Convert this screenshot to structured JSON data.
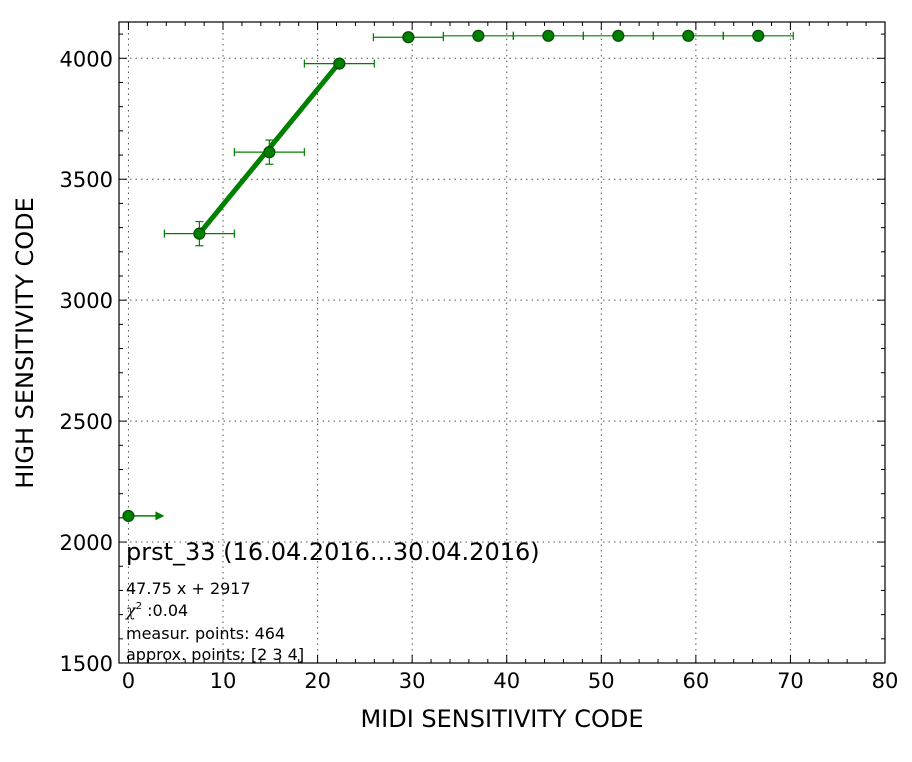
{
  "chart_data": {
    "type": "scatter",
    "xlabel": "MIDI SENSITIVITY CODE",
    "ylabel": "HIGH SENSITIVITY CODE",
    "xlim": [
      -1,
      80
    ],
    "ylim": [
      1500,
      4150
    ],
    "x_ticks": [
      "0",
      "10",
      "20",
      "30",
      "40",
      "50",
      "60",
      "70",
      "80"
    ],
    "y_ticks": [
      "1500",
      "2000",
      "2500",
      "3000",
      "3500",
      "4000"
    ],
    "grid": true,
    "colors": {
      "series": "#008000",
      "marker_face": "#008000",
      "marker_edge": "#004d00"
    },
    "points": [
      {
        "x": 0.0,
        "y": 2108,
        "xerr": 0,
        "yerr": 15
      },
      {
        "x": 7.5,
        "y": 3275,
        "xerr": 3.7,
        "yerr": 50
      },
      {
        "x": 14.9,
        "y": 3612,
        "xerr": 3.7,
        "yerr": 50
      },
      {
        "x": 22.3,
        "y": 3978,
        "xerr": 3.7,
        "yerr": 15
      },
      {
        "x": 29.6,
        "y": 4087,
        "xerr": 3.7,
        "yerr": 0
      },
      {
        "x": 37.0,
        "y": 4093,
        "xerr": 3.7,
        "yerr": 0
      },
      {
        "x": 44.4,
        "y": 4093,
        "xerr": 3.7,
        "yerr": 0
      },
      {
        "x": 51.8,
        "y": 4093,
        "xerr": 3.7,
        "yerr": 0
      },
      {
        "x": 59.2,
        "y": 4093,
        "xerr": 3.7,
        "yerr": 0
      },
      {
        "x": 66.6,
        "y": 4093,
        "xerr": 3.7,
        "yerr": 0
      }
    ],
    "arrow": {
      "x_from": 0.0,
      "x_to": 3.8,
      "y": 2108
    },
    "fit_line": {
      "slope": 47.75,
      "intercept": 2917,
      "x_from": 7.5,
      "x_to": 22.3
    },
    "annotations": {
      "title": "prst_33 (16.04.2016...30.04.2016)",
      "equation": "47.75 x + 2917",
      "chi_label": "χ",
      "chi_sup": "2",
      "chi_value": " :0.04",
      "measur_points": "measur. points: 464",
      "approx_points": "approx. points: [2 3 4]"
    }
  }
}
